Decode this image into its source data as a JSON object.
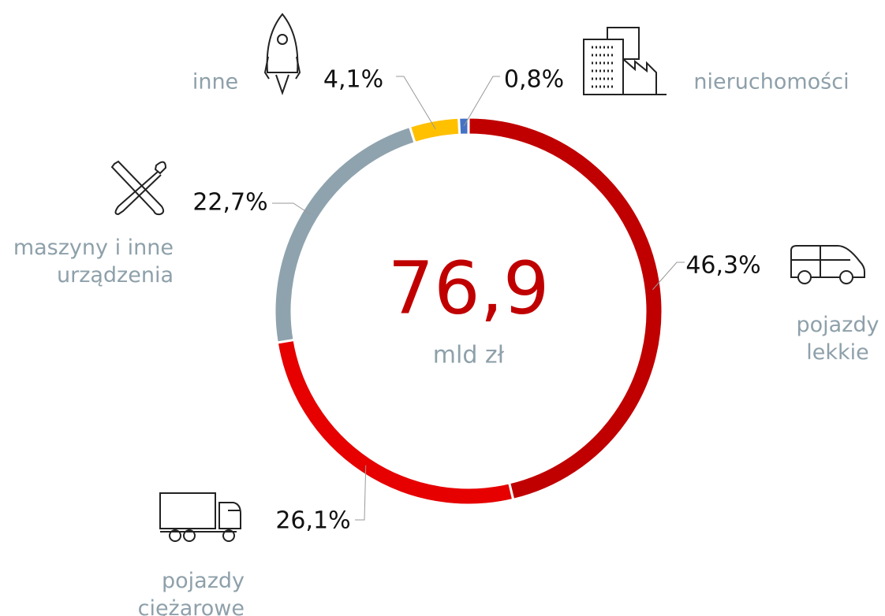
{
  "chart_data": {
    "type": "donut",
    "center_label": "76,9",
    "center_unit": "mld zł",
    "categories": [
      "pojazdy\nlekkie",
      "pojazdy\nciężarowe",
      "maszyny i inne\nurządzenia",
      "inne",
      "nieruchomości"
    ],
    "values": [
      46.3,
      26.1,
      22.7,
      4.1,
      0.8
    ],
    "value_labels": [
      "46,3%",
      "26,1%",
      "22,7%",
      "4,1%",
      "0,8%"
    ],
    "colors": [
      "#c00000",
      "#e60000",
      "#8fa3ae",
      "#ffc000",
      "#4472c4"
    ]
  }
}
